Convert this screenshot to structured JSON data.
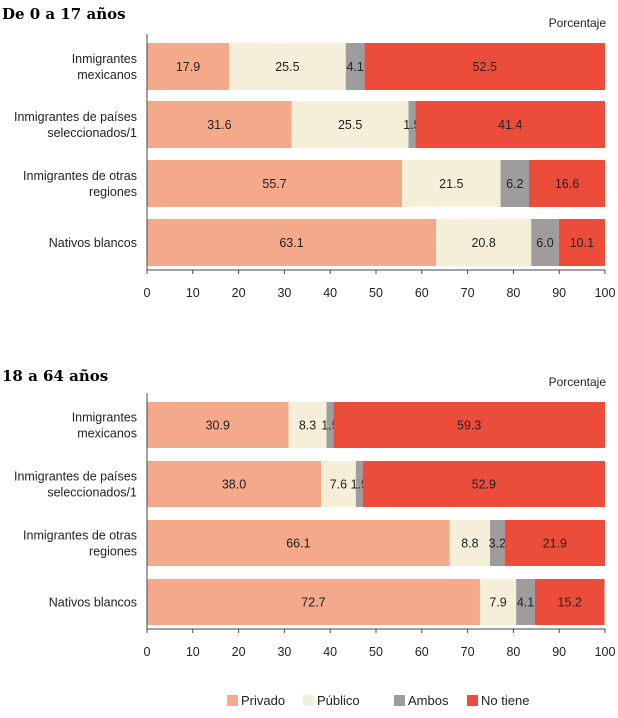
{
  "chart_data": [
    {
      "type": "bar",
      "orientation": "horizontal",
      "stacked": true,
      "title": "De 0 a 17 años",
      "unit_label": "Porcentaje",
      "categories": [
        "Inmigrantes\nmexicanos",
        "Inmigrantes de países\nseleccionados/1",
        "Inmigrantes de otras\nregiones",
        "Nativos blancos"
      ],
      "series": [
        {
          "name": "Privado",
          "color": "#f4a98a",
          "values": [
            17.9,
            31.6,
            55.7,
            63.1
          ]
        },
        {
          "name": "Público",
          "color": "#f5efd9",
          "values": [
            25.5,
            25.5,
            21.5,
            20.8
          ]
        },
        {
          "name": "Ambos",
          "color": "#9d9d9d",
          "values": [
            4.1,
            1.5,
            6.2,
            6.0
          ]
        },
        {
          "name": "No tiene",
          "color": "#ec4d3a",
          "values": [
            52.5,
            41.4,
            16.6,
            10.1
          ]
        }
      ],
      "xlim": [
        0,
        100
      ],
      "xticks": [
        0,
        10,
        20,
        30,
        40,
        50,
        60,
        70,
        80,
        90,
        100
      ]
    },
    {
      "type": "bar",
      "orientation": "horizontal",
      "stacked": true,
      "title": "18 a 64 años",
      "unit_label": "Porcentaje",
      "categories": [
        "Inmigrantes\nmexicanos",
        "Inmigrantes de países\nseleccionados/1",
        "Inmigrantes de otras\nregiones",
        "Nativos blancos"
      ],
      "series": [
        {
          "name": "Privado",
          "color": "#f4a98a",
          "values": [
            30.9,
            38.0,
            66.1,
            72.7
          ]
        },
        {
          "name": "Público",
          "color": "#f5efd9",
          "values": [
            8.3,
            7.6,
            8.8,
            7.9
          ]
        },
        {
          "name": "Ambos",
          "color": "#9d9d9d",
          "values": [
            1.5,
            1.5,
            3.2,
            4.1
          ]
        },
        {
          "name": "No tiene",
          "color": "#ec4d3a",
          "values": [
            59.3,
            52.9,
            21.9,
            15.2
          ]
        }
      ],
      "xlim": [
        0,
        100
      ],
      "xticks": [
        0,
        10,
        20,
        30,
        40,
        50,
        60,
        70,
        80,
        90,
        100
      ]
    }
  ],
  "legend": {
    "position": "bottom",
    "items": [
      {
        "label": "Privado",
        "color": "#f4a98a"
      },
      {
        "label": "Público",
        "color": "#f5efd9"
      },
      {
        "label": "Ambos",
        "color": "#9d9d9d"
      },
      {
        "label": "No tiene",
        "color": "#ec4d3a"
      }
    ]
  }
}
